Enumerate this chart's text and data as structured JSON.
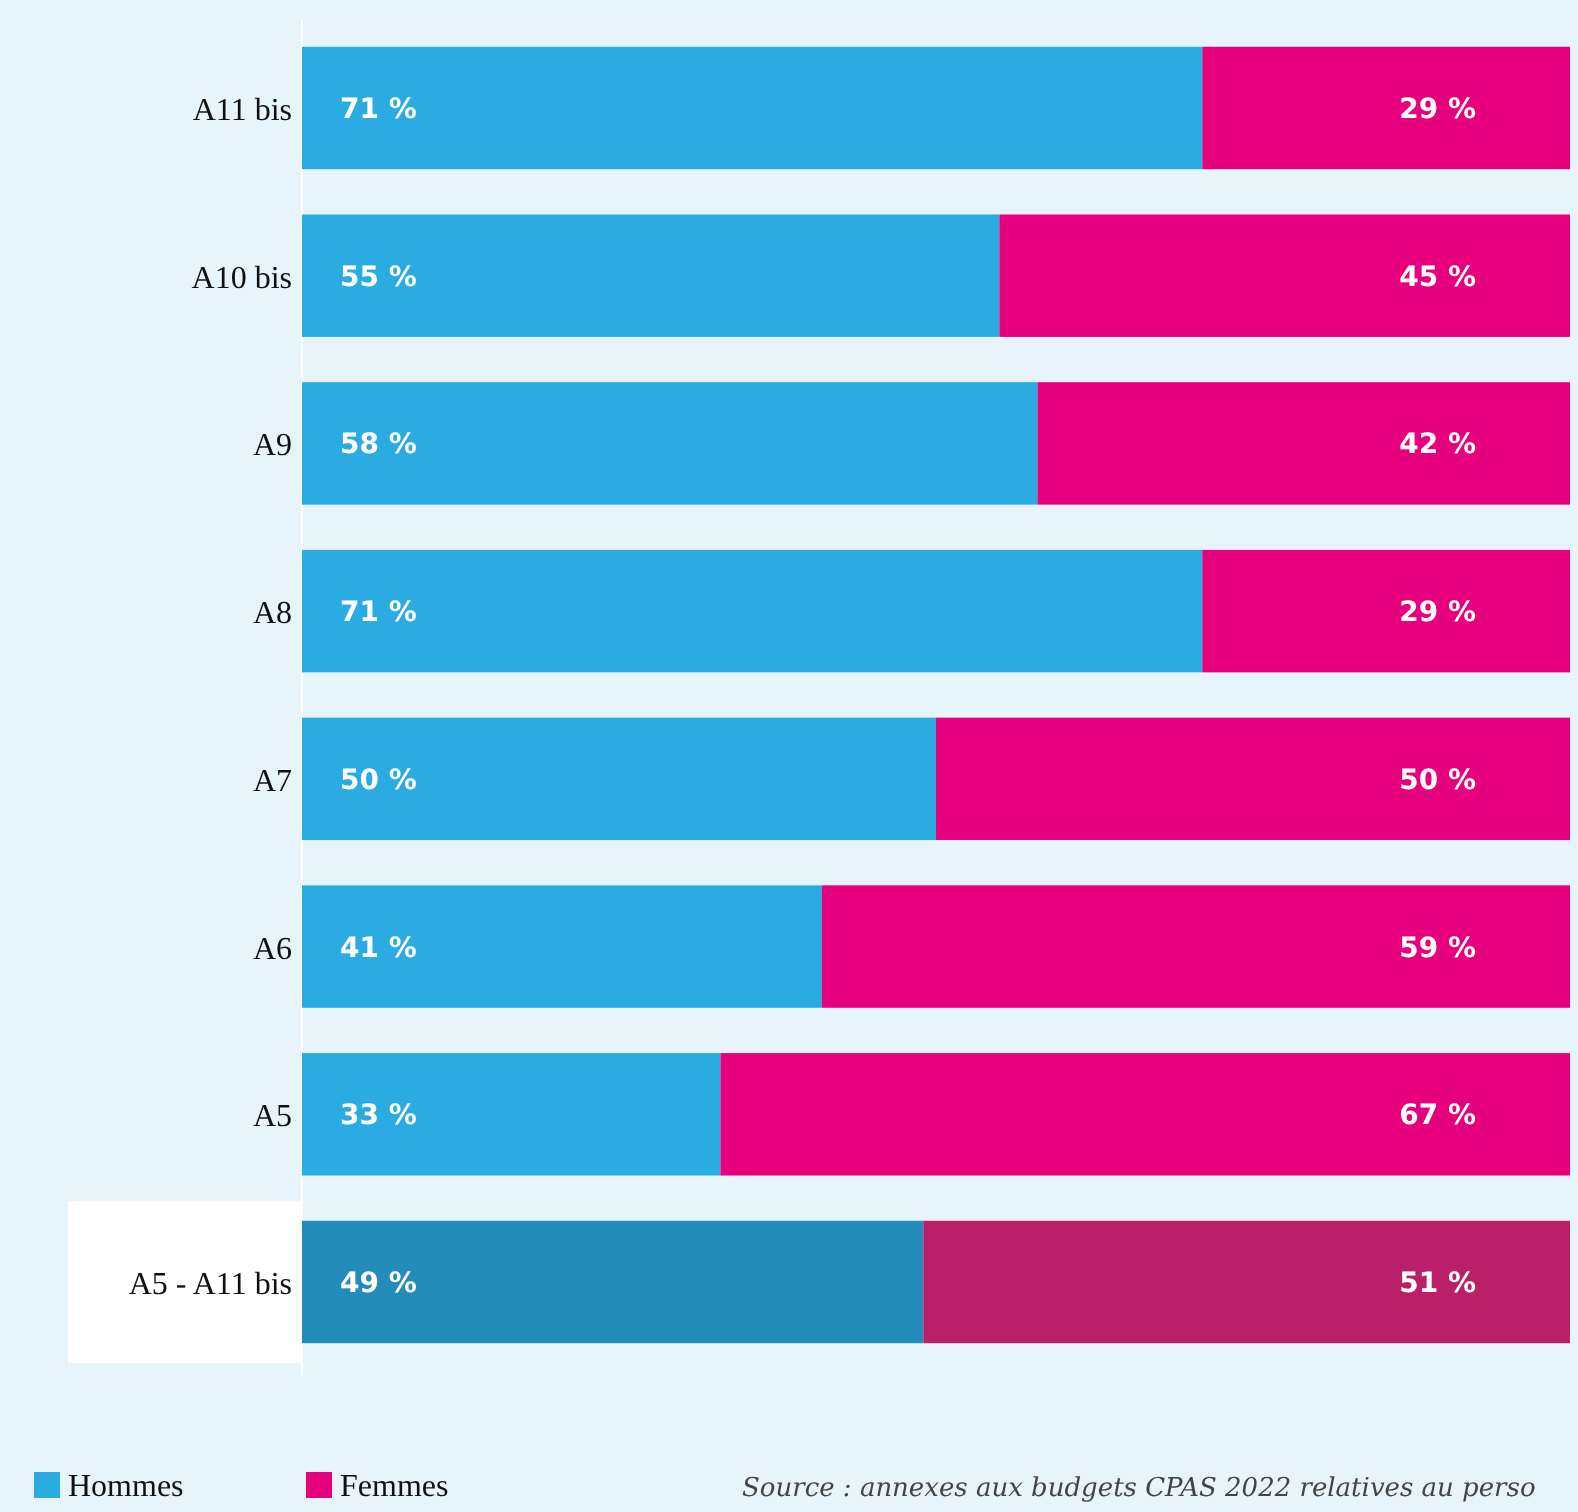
{
  "chart_data": {
    "type": "bar",
    "orientation": "horizontal",
    "stacked": true,
    "categories": [
      "A11 bis",
      "A10 bis",
      "A9",
      "A8",
      "A7",
      "A6",
      "A5",
      "A5 - A11 bis"
    ],
    "xlim": [
      0,
      100
    ],
    "legend": "bottom left",
    "series": [
      {
        "name": "Hommes",
        "color": "#2aace2",
        "colors": [
          "#2aace2",
          "#2aace2",
          "#2aace2",
          "#2aace2",
          "#2aace2",
          "#2aace2",
          "#2aace2",
          "#238cbb"
        ],
        "values": [
          71,
          55,
          58,
          71,
          50,
          41,
          33,
          49
        ],
        "value_labels": [
          "71 %",
          "55 %",
          "58 %",
          "71 %",
          "50 %",
          "41 %",
          "33 %",
          "49 %"
        ]
      },
      {
        "name": "Femmes",
        "color": "#e6007e",
        "colors": [
          "#e6007e",
          "#e6007e",
          "#e6007e",
          "#e6007e",
          "#e6007e",
          "#e6007e",
          "#e6007e",
          "#b92068"
        ],
        "values": [
          29,
          45,
          42,
          29,
          50,
          59,
          67,
          51
        ],
        "value_labels": [
          "29 %",
          "45 %",
          "42 %",
          "29 %",
          "50 %",
          "59 %",
          "67 %",
          "51 %"
        ]
      }
    ],
    "annotations": [
      "Source : annexes aux budgets CPAS 2022 relatives au perso"
    ]
  }
}
